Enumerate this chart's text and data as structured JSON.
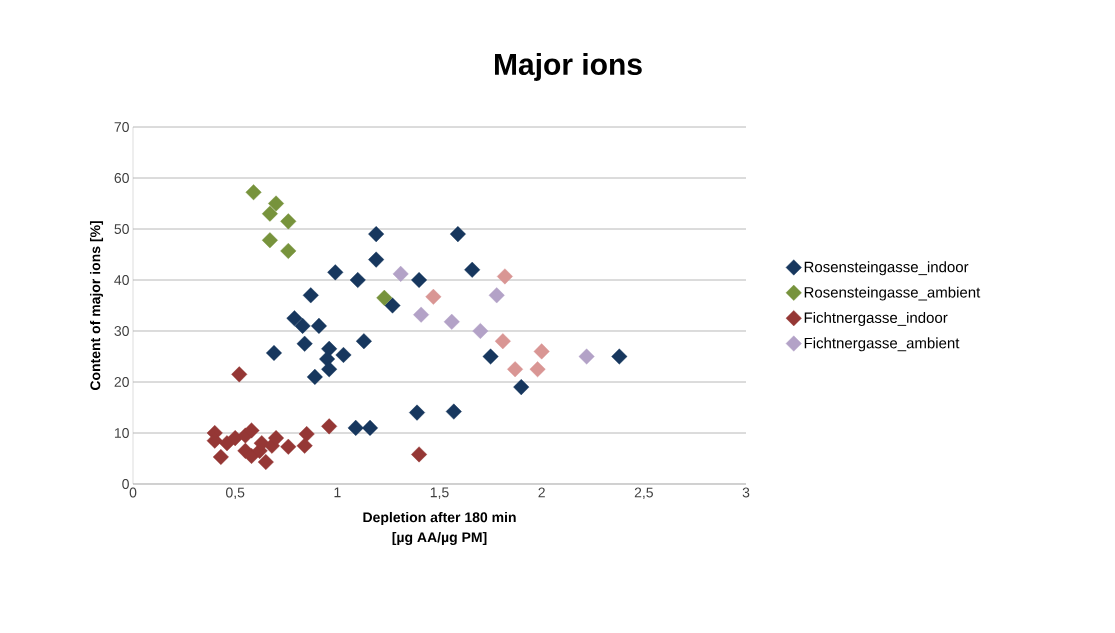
{
  "chart_data": {
    "type": "scatter",
    "title": "Major ions",
    "xlabel": "Depletion after 180 min\n[µg AA/µg PM]",
    "ylabel": "Content of major ions [%]",
    "xlim": [
      0,
      3
    ],
    "ylim": [
      0,
      70
    ],
    "xticks": [
      0,
      {
        "value": 0.5,
        "label": "0,5"
      },
      1,
      {
        "value": 1.5,
        "label": "1,5"
      },
      2,
      {
        "value": 2.5,
        "label": "2,5"
      },
      3
    ],
    "yticks": [
      0,
      10,
      20,
      30,
      40,
      50,
      60,
      70
    ],
    "grid": "y",
    "legend": "right",
    "marker": "diamond",
    "series": [
      {
        "name": "Rosensteingasse_indoor",
        "color": "#17375e",
        "x": [
          1.59,
          1.19,
          1.19,
          0.99,
          1.1,
          1.4,
          1.66,
          1.27,
          0.87,
          0.79,
          0.83,
          0.91,
          0.84,
          1.13,
          0.69,
          0.96,
          0.95,
          1.03,
          0.96,
          0.89,
          1.75,
          1.9,
          2.38,
          1.39,
          1.57,
          1.09,
          1.16
        ],
        "values": [
          49,
          49,
          44,
          41.5,
          40,
          40,
          42,
          35,
          37,
          32.5,
          31,
          31,
          27.5,
          28,
          25.7,
          26.5,
          24.5,
          25.3,
          22.5,
          21,
          25,
          19,
          25,
          14,
          14.2,
          11,
          11
        ]
      },
      {
        "name": "Rosensteingasse_ambient",
        "color": "#77933c",
        "x": [
          0.59,
          0.7,
          0.67,
          0.76,
          0.67,
          0.76,
          1.23
        ],
        "values": [
          57.2,
          55,
          53,
          51.5,
          47.8,
          45.7,
          36.5
        ]
      },
      {
        "name": "Fichtnergasse_indoor",
        "color": "#953735",
        "x": [
          0.52,
          0.4,
          0.4,
          0.43,
          0.46,
          0.5,
          0.55,
          0.58,
          0.55,
          0.58,
          0.62,
          0.63,
          0.65,
          0.68,
          0.7,
          0.76,
          0.85,
          0.84,
          0.96,
          1.4
        ],
        "values": [
          21.5,
          10,
          8.5,
          5.3,
          8,
          9,
          9.5,
          10.5,
          6.5,
          5.5,
          6.5,
          8,
          4.3,
          7.5,
          9,
          7.3,
          9.8,
          7.5,
          11.3,
          5.8
        ]
      },
      {
        "name": "Fichtnergasse_ambient",
        "color": "#b3a2c7",
        "x": [
          1.31,
          1.41,
          1.56,
          1.7,
          1.78,
          2.22
        ],
        "values": [
          41.2,
          33.2,
          31.8,
          30,
          37,
          25
        ]
      },
      {
        "color": "#d99694",
        "x": [
          1.47,
          1.82,
          1.81,
          1.87,
          1.98,
          2.0
        ],
        "values": [
          36.7,
          40.7,
          28,
          22.5,
          22.5,
          26
        ]
      }
    ]
  }
}
